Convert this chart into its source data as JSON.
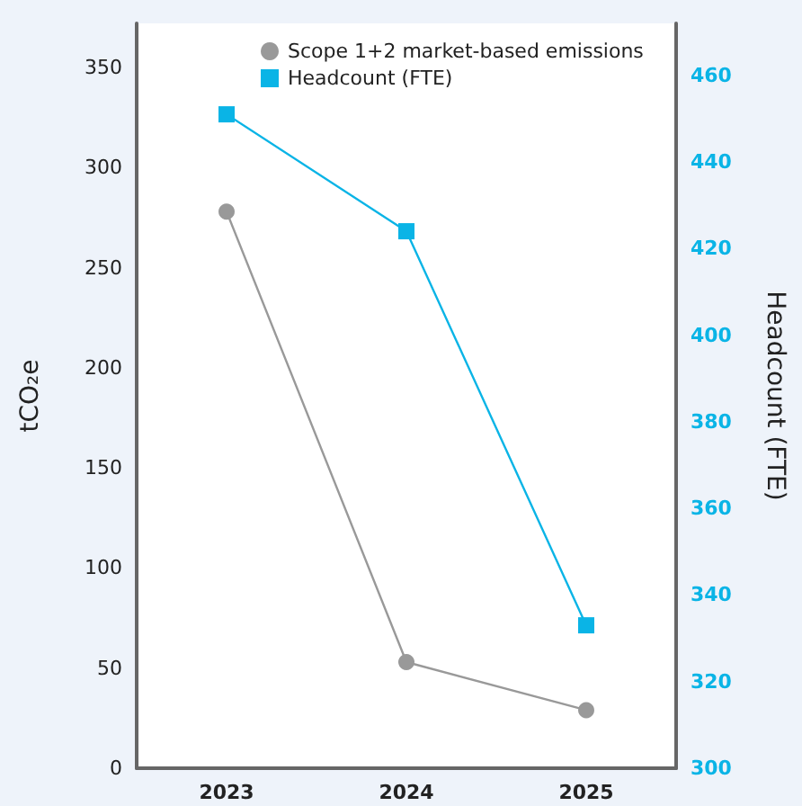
{
  "chart_data": {
    "type": "line",
    "ylabel": "tCO₂e",
    "y2label": "Headcount (FTE)",
    "categories": [
      "2023",
      "2024",
      "2025"
    ],
    "series": [
      {
        "name": "Scope 1+2 market-based emissions",
        "color": "#999999",
        "values": [
          278,
          53,
          29
        ],
        "marker": "circle"
      },
      {
        "name": "Headcount (FTE)",
        "color": "#0ab4e6",
        "values": [
          451,
          424,
          333
        ],
        "axis": "y2",
        "marker": "square"
      }
    ],
    "ylim": [
      0,
      372
    ],
    "yticks": [
      0,
      50,
      100,
      150,
      200,
      250,
      300,
      350
    ],
    "y2lim": [
      300,
      472
    ],
    "y2ticks": [
      300,
      320,
      340,
      360,
      380,
      400,
      420,
      440,
      460
    ],
    "grid": false,
    "legend": "top"
  }
}
